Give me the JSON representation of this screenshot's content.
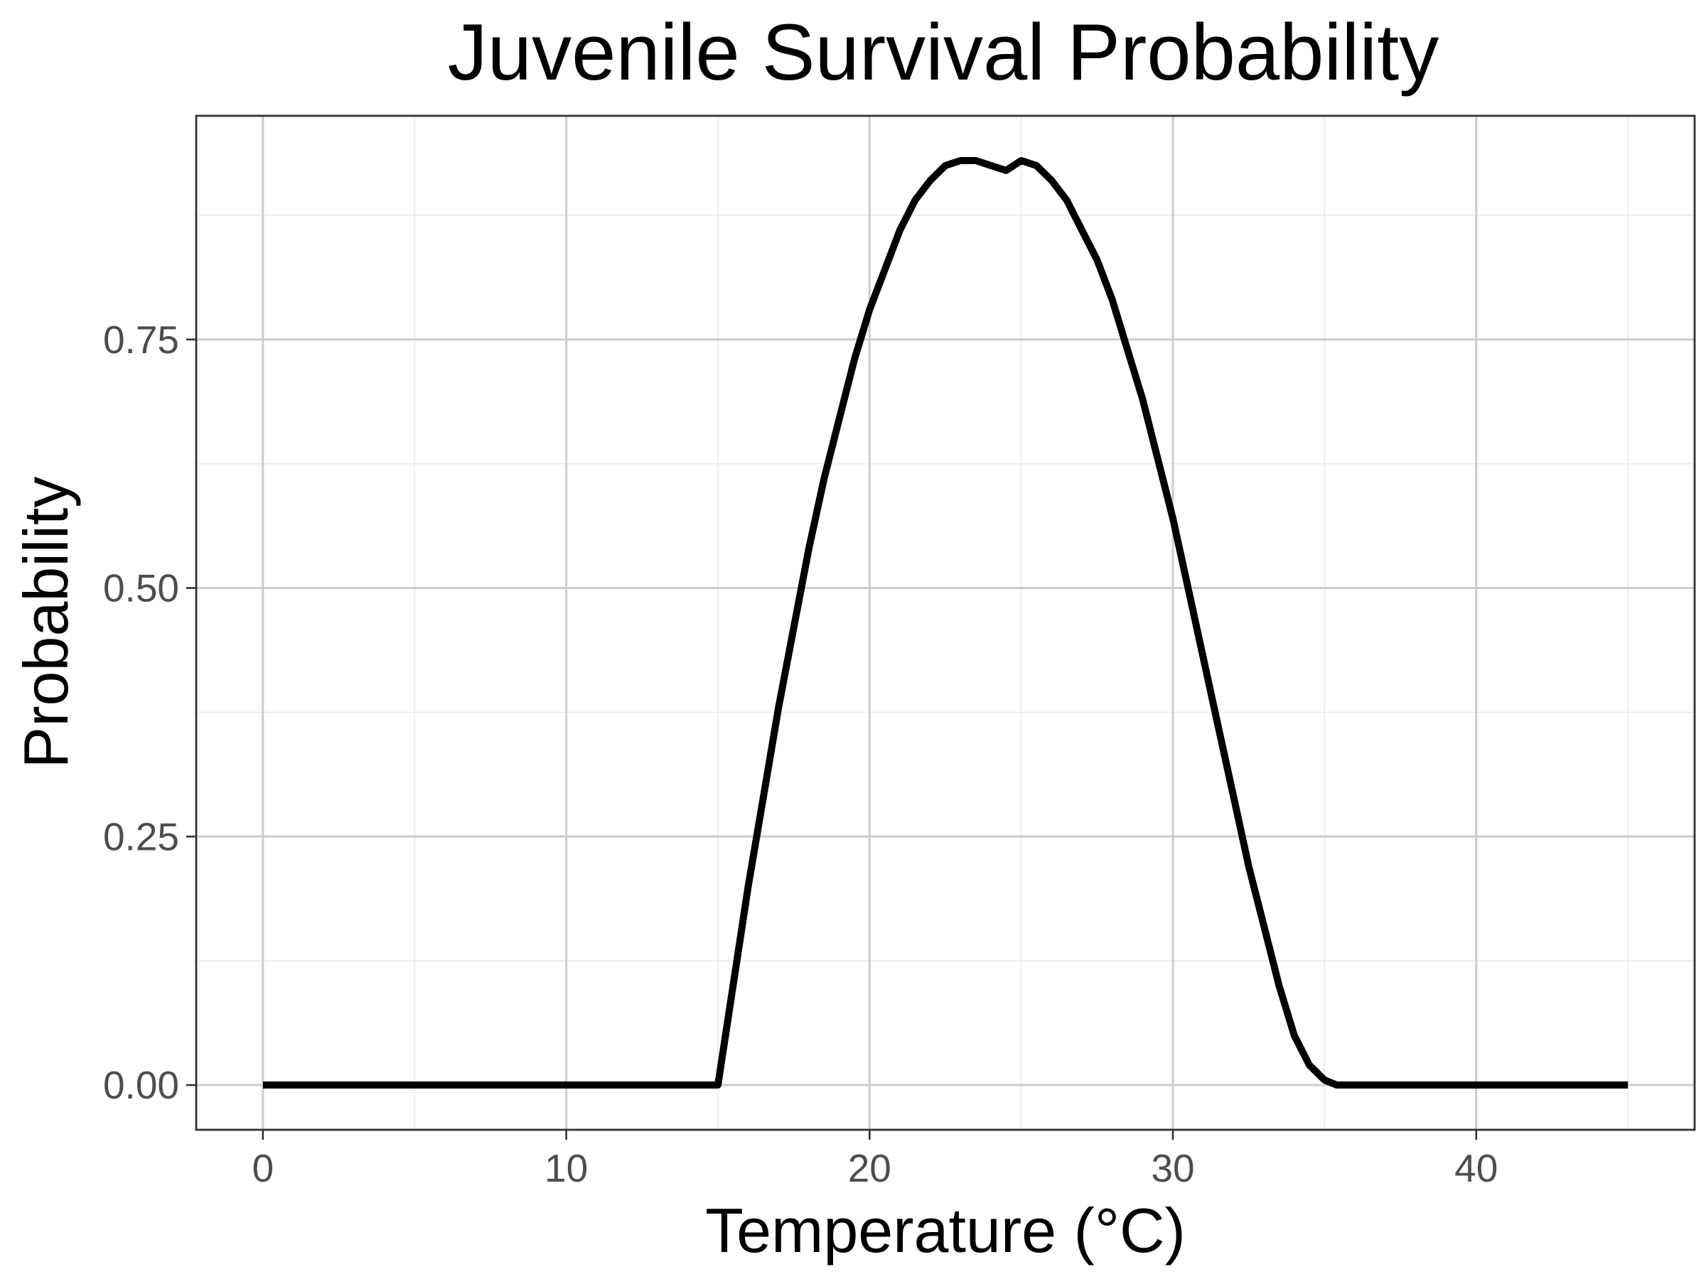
{
  "chart_data": {
    "type": "line",
    "title": "Juvenile Survival Probability",
    "xlabel": "Temperature (°C)",
    "ylabel": "Probability",
    "xlim": [
      -2.2,
      47.2
    ],
    "ylim": [
      -0.045,
      0.975
    ],
    "x_ticks": [
      0,
      10,
      20,
      30,
      40
    ],
    "x_tick_labels": [
      "0",
      "10",
      "20",
      "30",
      "40"
    ],
    "x_minor_ticks": [
      5,
      15,
      25,
      35,
      45
    ],
    "y_ticks": [
      0,
      0.25,
      0.5,
      0.75
    ],
    "y_tick_labels": [
      "0.00",
      "0.25",
      "0.50",
      "0.75"
    ],
    "y_minor_ticks": [
      0.125,
      0.375,
      0.625,
      0.875
    ],
    "grid": true,
    "legend": "none",
    "series": [
      {
        "name": "Juvenile survival",
        "color": "#000000",
        "x": [
          0,
          5,
          10,
          15,
          15.5,
          16,
          16.5,
          17,
          17.5,
          18,
          18.5,
          19,
          19.5,
          20,
          20.5,
          21,
          21.5,
          22,
          22.5,
          23,
          23.5,
          24,
          24.5,
          25,
          25.5,
          26,
          26.5,
          27,
          27.5,
          28,
          28.5,
          29,
          29.5,
          30,
          30.5,
          31,
          31.5,
          32,
          32.5,
          33,
          33.5,
          34,
          34.5,
          35,
          35.4,
          36,
          40,
          45
        ],
        "values": [
          0,
          0,
          0,
          0,
          0.1,
          0.2,
          0.29,
          0.38,
          0.46,
          0.54,
          0.61,
          0.67,
          0.73,
          0.78,
          0.82,
          0.86,
          0.89,
          0.91,
          0.925,
          0.93,
          0.93,
          0.925,
          0.92,
          0.93,
          0.925,
          0.91,
          0.89,
          0.86,
          0.83,
          0.79,
          0.74,
          0.69,
          0.63,
          0.57,
          0.5,
          0.43,
          0.36,
          0.29,
          0.22,
          0.16,
          0.1,
          0.05,
          0.02,
          0.005,
          0,
          0,
          0,
          0
        ]
      }
    ]
  }
}
